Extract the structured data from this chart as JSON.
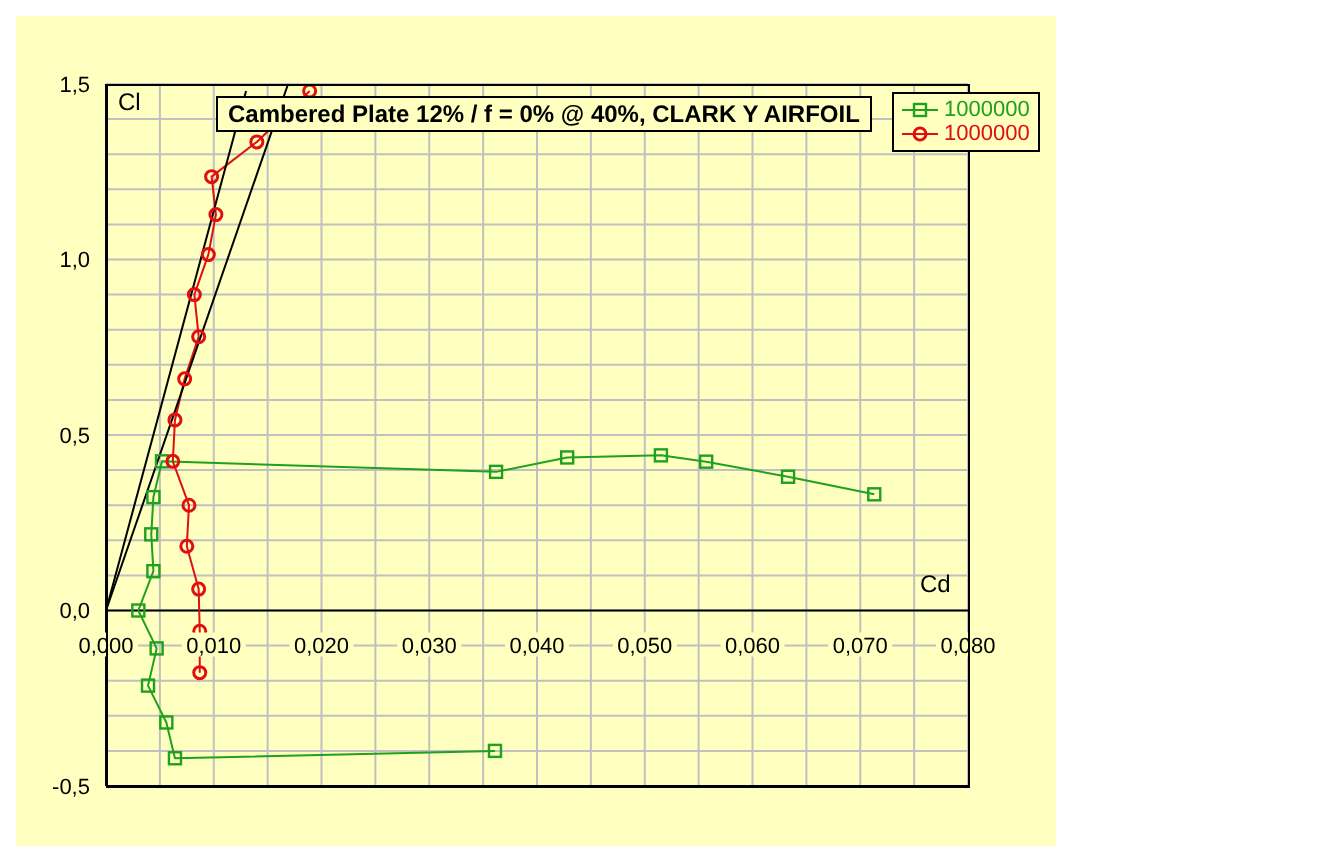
{
  "chart_data": {
    "type": "line",
    "title": "Cambered Plate 12% / f = 0% @ 40%,  CLARK Y AIRFOIL",
    "xlabel": "Cd",
    "ylabel": "Cl",
    "xlim": [
      0,
      0.08
    ],
    "ylim": [
      -0.5,
      1.5
    ],
    "xticks": [
      {
        "value": 0,
        "label": "0,000"
      },
      {
        "value": 0.005,
        "label": null
      },
      {
        "value": 0.01,
        "label": "0,010"
      },
      {
        "value": 0.015,
        "label": null
      },
      {
        "value": 0.02,
        "label": "0,020"
      },
      {
        "value": 0.025,
        "label": null
      },
      {
        "value": 0.03,
        "label": "0,030"
      },
      {
        "value": 0.035,
        "label": null
      },
      {
        "value": 0.04,
        "label": "0,040"
      },
      {
        "value": 0.045,
        "label": null
      },
      {
        "value": 0.05,
        "label": "0,050"
      },
      {
        "value": 0.055,
        "label": null
      },
      {
        "value": 0.06,
        "label": "0,060"
      },
      {
        "value": 0.065,
        "label": null
      },
      {
        "value": 0.07,
        "label": "0,070"
      },
      {
        "value": 0.075,
        "label": null
      },
      {
        "value": 0.08,
        "label": "0,080"
      }
    ],
    "yticks": [
      {
        "value": -0.5,
        "label": "-0,5"
      },
      {
        "value": -0.4,
        "label": null
      },
      {
        "value": -0.3,
        "label": null
      },
      {
        "value": -0.2,
        "label": null
      },
      {
        "value": -0.1,
        "label": null
      },
      {
        "value": 0,
        "label": "0,0"
      },
      {
        "value": 0.1,
        "label": null
      },
      {
        "value": 0.2,
        "label": null
      },
      {
        "value": 0.3,
        "label": null
      },
      {
        "value": 0.4,
        "label": null
      },
      {
        "value": 0.5,
        "label": "0,5"
      },
      {
        "value": 0.6,
        "label": null
      },
      {
        "value": 0.7,
        "label": null
      },
      {
        "value": 0.8,
        "label": null
      },
      {
        "value": 0.9,
        "label": null
      },
      {
        "value": 1,
        "label": "1,0"
      },
      {
        "value": 1.1,
        "label": null
      },
      {
        "value": 1.2,
        "label": null
      },
      {
        "value": 1.3,
        "label": null
      },
      {
        "value": 1.4,
        "label": null
      },
      {
        "value": 1.5,
        "label": "1,5"
      }
    ],
    "grid": true,
    "legend": "top right",
    "line_style": "solid",
    "series": [
      {
        "name": "1000000",
        "color": "#1fa01f",
        "marker": "square",
        "x": [
          0.0361,
          0.0064,
          0.0056,
          0.0039,
          0.0047,
          0.003,
          0.0044,
          0.0042,
          0.0044,
          0.0052,
          0.0362,
          0.0428,
          0.0515,
          0.0557,
          0.0633,
          0.0713
        ],
        "values": [
          -0.4,
          -0.421,
          -0.319,
          -0.214,
          -0.108,
          0,
          0.112,
          0.217,
          0.323,
          0.425,
          0.395,
          0.436,
          0.442,
          0.424,
          0.381,
          0.331
        ]
      },
      {
        "name": "1000000",
        "color": "#e01010",
        "marker": "circle",
        "x": [
          0.0087,
          0.0087,
          0.0086,
          0.0075,
          0.0077,
          0.0062,
          0.0064,
          0.0073,
          0.0086,
          0.0082,
          0.0095,
          0.0102,
          0.0098,
          0.014,
          0.0189
        ],
        "values": [
          -0.177,
          -0.059,
          0.061,
          0.183,
          0.3,
          0.425,
          0.543,
          0.66,
          0.78,
          0.9,
          1.014,
          1.128,
          1.236,
          1.335,
          1.48
        ]
      },
      {
        "color": "#000000",
        "marker": "none",
        "x": [
          0,
          0.013
        ],
        "values": [
          0,
          1.48
        ]
      },
      {
        "color": "#000000",
        "marker": "none",
        "x": [
          0,
          0.0169
        ],
        "values": [
          0,
          1.5
        ]
      }
    ]
  }
}
